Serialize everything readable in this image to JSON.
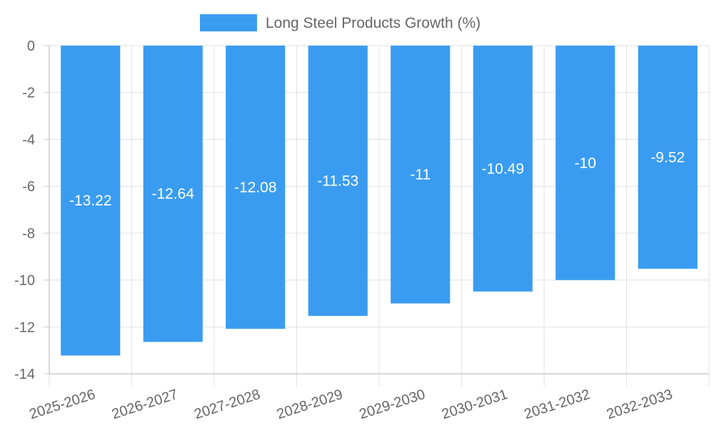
{
  "chart_data": {
    "type": "bar",
    "categories": [
      "2025-2026",
      "2026-2027",
      "2027-2028",
      "2028-2029",
      "2029-2030",
      "2030-2031",
      "2031-2032",
      "2032-2033"
    ],
    "series": [
      {
        "name": "Long Steel Products Growth (%)",
        "values": [
          -13.22,
          -12.64,
          -12.08,
          -11.53,
          -11,
          -10.49,
          -10,
          -9.52
        ],
        "color": "#3a9cf0"
      }
    ],
    "data_labels": [
      "-13.22",
      "-12.64",
      "-12.08",
      "-11.53",
      "-11",
      "-10.49",
      "-10",
      "-9.52"
    ],
    "ylim": [
      -14,
      0
    ],
    "y_ticks": [
      0,
      -2,
      -4,
      -6,
      -8,
      -10,
      -12,
      -14
    ],
    "legend_position": "top-center",
    "grid": true
  }
}
